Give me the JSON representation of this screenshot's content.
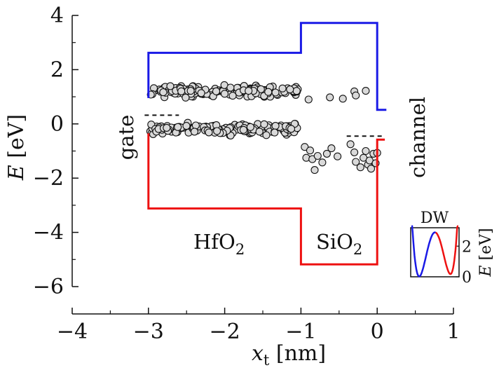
{
  "chart_data": {
    "type": "scatter",
    "title": "",
    "xlabel": "x_t [nm]",
    "ylabel": "E [eV]",
    "xlim": [
      -4,
      1
    ],
    "ylim": [
      -6.7,
      4.2
    ],
    "x_ticks": [
      -4,
      -3,
      -2,
      -1,
      0,
      1
    ],
    "y_ticks": [
      -6,
      -4,
      -2,
      0,
      2,
      4
    ],
    "x_tick_labels": [
      "−4",
      "−3",
      "−2",
      "−1",
      "0",
      "1"
    ],
    "y_tick_labels": [
      "−6",
      "−4",
      "−2",
      "0",
      "2",
      "4"
    ],
    "grid": false,
    "annotations": {
      "gate": "gate",
      "channel": "channel",
      "hfo2_main": "HfO",
      "hfo2_sub": "2",
      "sio2_main": "SiO",
      "sio2_sub": "2"
    },
    "axis_label_parts": {
      "x_var": "x",
      "x_sub": "t",
      "x_unit": " [nm]",
      "y_var": "E",
      "y_unit": " [eV]"
    },
    "conduction_band": {
      "color": "#1a1ae6",
      "points": [
        [
          -3,
          0.95
        ],
        [
          -3,
          2.62
        ],
        [
          -1,
          2.62
        ],
        [
          -1,
          3.72
        ],
        [
          0,
          3.72
        ],
        [
          0,
          0.52
        ],
        [
          0.12,
          0.52
        ]
      ]
    },
    "valence_band": {
      "color": "#ee1111",
      "points": [
        [
          -3,
          -0.35
        ],
        [
          -3,
          -3.12
        ],
        [
          -1,
          -3.12
        ],
        [
          -1,
          -5.18
        ],
        [
          0,
          -5.18
        ],
        [
          0,
          -0.58
        ],
        [
          0.1,
          -0.58
        ]
      ]
    },
    "fermi_levels": [
      {
        "x": [
          -3.05,
          -2.6
        ],
        "y": 0.32
      },
      {
        "x": [
          -0.4,
          0.1
        ],
        "y": -0.45
      }
    ],
    "trap_series": [
      {
        "region": "HfO2-upper",
        "x_range": [
          -2.98,
          -1.02
        ],
        "y_center": 1.2,
        "y_spread": 0.18,
        "count": 170
      },
      {
        "region": "HfO2-lower",
        "x_range": [
          -2.98,
          -1.02
        ],
        "y_center": -0.18,
        "y_spread": 0.18,
        "count": 170
      },
      {
        "region": "SiO2-upper",
        "points": [
          [
            -0.9,
            0.9
          ],
          [
            -0.62,
            0.98
          ],
          [
            -0.45,
            0.93
          ],
          [
            -0.3,
            1.2
          ],
          [
            -0.28,
            1.05
          ],
          [
            -0.15,
            1.22
          ]
        ]
      },
      {
        "region": "SiO2-lower",
        "points": [
          [
            -0.95,
            -0.85
          ],
          [
            -0.93,
            -1.25
          ],
          [
            -0.88,
            -0.98
          ],
          [
            -0.85,
            -1.3
          ],
          [
            -0.82,
            -1.7
          ],
          [
            -0.78,
            -1.18
          ],
          [
            -0.72,
            -1.42
          ],
          [
            -0.66,
            -1.1
          ],
          [
            -0.6,
            -0.9
          ],
          [
            -0.52,
            -1.2
          ],
          [
            -0.35,
            -0.75
          ],
          [
            -0.3,
            -1.05
          ],
          [
            -0.28,
            -1.4
          ],
          [
            -0.22,
            -1.6
          ],
          [
            -0.18,
            -1.25
          ],
          [
            -0.15,
            -1.0
          ],
          [
            -0.12,
            -1.5
          ],
          [
            -0.1,
            -1.35
          ],
          [
            -0.08,
            -1.65
          ],
          [
            -0.05,
            -1.1
          ],
          [
            -0.02,
            -1.45
          ],
          [
            0.0,
            -1.07
          ]
        ]
      }
    ],
    "inset": {
      "title": "DW",
      "ylabel": "E [eV]",
      "y_ticks": [
        0,
        2
      ],
      "y_tick_labels": [
        "0",
        "2"
      ],
      "ylim": [
        0,
        3.2
      ],
      "blue_color": "#1a1ae6",
      "red_color": "#ee1111"
    }
  }
}
